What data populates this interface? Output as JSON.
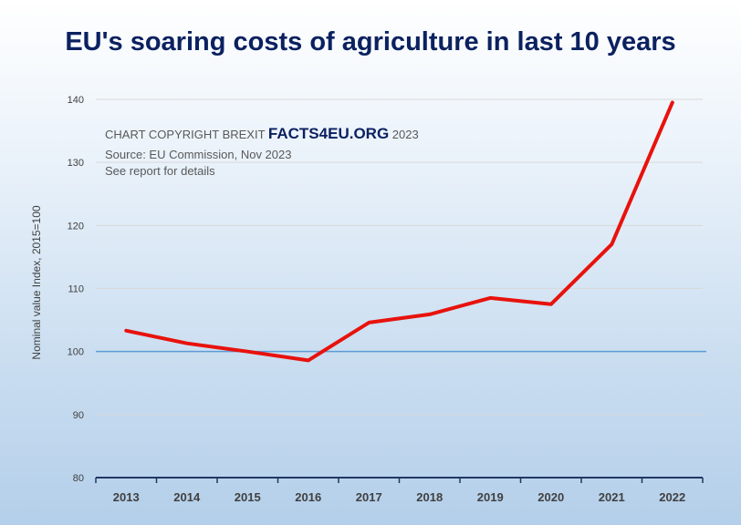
{
  "chart_data": {
    "type": "line",
    "title": "EU's soaring costs of agriculture in last 10 years",
    "xlabel": "",
    "ylabel": "Nominal value Index, 2015=100",
    "categories": [
      "2013",
      "2014",
      "2015",
      "2016",
      "2017",
      "2018",
      "2019",
      "2020",
      "2021",
      "2022"
    ],
    "series": [
      {
        "name": "Nominal value index",
        "values": [
          103.3,
          101.3,
          100.0,
          98.6,
          104.6,
          105.9,
          108.5,
          107.5,
          117.0,
          139.5
        ]
      }
    ],
    "ylim": [
      80,
      140
    ],
    "yticks": [
      "80",
      "90",
      "100",
      "110",
      "120",
      "130",
      "140"
    ],
    "reference_line": 100,
    "grid": true,
    "colors": {
      "line": "#e8120c",
      "reference": "#5b9bd5",
      "axis": "#1f3864",
      "grid": "#d9d9d9"
    }
  },
  "copyright": {
    "prefix": "CHART COPYRIGHT BREXIT",
    "brand": "FACTS4EU.ORG",
    "year": "2023",
    "source": "Source: EU Commission, Nov 2023",
    "note": "See report for details"
  }
}
